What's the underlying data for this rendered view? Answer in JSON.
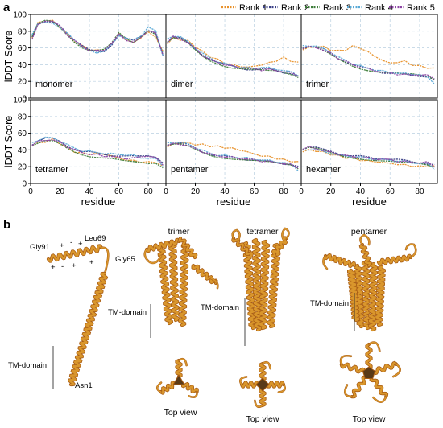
{
  "figure": {
    "panel_a": "a",
    "panel_b": "b"
  },
  "colors": {
    "rank1": "#e8912a",
    "rank2": "#3a3f86",
    "rank3": "#3d7d3a",
    "rank4": "#58a9d6",
    "rank5": "#8d45a4",
    "helix_fill": "#d9962c",
    "helix_edge": "#a85c14",
    "grid": "#b8cfe0"
  },
  "legend": [
    "Rank 1",
    "Rank 2",
    "Rank 3",
    "Rank 4",
    "Rank 5"
  ],
  "chart_data": {
    "type": "line",
    "ylabel": "lDDT Score",
    "xlabel": "residue",
    "xlim": [
      0,
      92
    ],
    "ylim": [
      0,
      100
    ],
    "x_ticks": [
      0,
      20,
      40,
      60,
      80
    ],
    "y_ticks": [
      0,
      20,
      40,
      60,
      80,
      100
    ],
    "grid": true,
    "legend_position": "top",
    "x": [
      1,
      5,
      10,
      15,
      20,
      25,
      30,
      35,
      40,
      45,
      50,
      55,
      60,
      65,
      70,
      75,
      80,
      85,
      90
    ],
    "panels": [
      {
        "name": "monomer",
        "series": [
          {
            "name": "Rank 1",
            "values": [
              72,
              90,
              93,
              92,
              85,
              76,
              68,
              62,
              58,
              57,
              58,
              65,
              77,
              70,
              66,
              73,
              78,
              74,
              55
            ]
          },
          {
            "name": "Rank 2",
            "values": [
              74,
              89,
              91,
              90,
              86,
              78,
              70,
              63,
              57,
              55,
              56,
              64,
              76,
              71,
              68,
              74,
              82,
              79,
              50
            ]
          },
          {
            "name": "Rank 3",
            "values": [
              73,
              88,
              92,
              91,
              84,
              75,
              67,
              61,
              58,
              58,
              59,
              66,
              78,
              70,
              65,
              72,
              80,
              76,
              54
            ]
          },
          {
            "name": "Rank 4",
            "values": [
              75,
              91,
              90,
              89,
              85,
              77,
              69,
              62,
              56,
              54,
              57,
              63,
              75,
              72,
              69,
              75,
              85,
              80,
              52
            ]
          },
          {
            "name": "Rank 5",
            "values": [
              71,
              87,
              93,
              92,
              86,
              76,
              68,
              62,
              57,
              56,
              58,
              65,
              76,
              70,
              66,
              73,
              81,
              77,
              53
            ]
          }
        ]
      },
      {
        "name": "dimer",
        "series": [
          {
            "name": "Rank 1",
            "values": [
              65,
              72,
              70,
              68,
              62,
              55,
              50,
              46,
              42,
              40,
              38,
              37,
              38,
              40,
              42,
              45,
              48,
              45,
              42
            ]
          },
          {
            "name": "Rank 2",
            "values": [
              68,
              74,
              72,
              66,
              58,
              52,
              47,
              43,
              40,
              38,
              36,
              35,
              34,
              34,
              35,
              33,
              31,
              30,
              26
            ]
          },
          {
            "name": "Rank 3",
            "values": [
              66,
              71,
              70,
              65,
              57,
              50,
              45,
              42,
              39,
              37,
              36,
              35,
              34,
              33,
              32,
              32,
              30,
              28,
              25
            ]
          },
          {
            "name": "Rank 4",
            "values": [
              70,
              75,
              73,
              67,
              60,
              53,
              48,
              44,
              41,
              39,
              37,
              36,
              36,
              37,
              36,
              35,
              33,
              31,
              28
            ]
          },
          {
            "name": "Rank 5",
            "values": [
              67,
              73,
              71,
              66,
              59,
              51,
              46,
              43,
              40,
              38,
              37,
              36,
              35,
              34,
              34,
              33,
              32,
              30,
              27
            ]
          }
        ]
      },
      {
        "name": "trimer",
        "series": [
          {
            "name": "Rank 1",
            "values": [
              58,
              60,
              62,
              61,
              58,
              56,
              58,
              62,
              60,
              55,
              50,
              45,
              42,
              43,
              44,
              40,
              38,
              37,
              35
            ]
          },
          {
            "name": "Rank 2",
            "values": [
              60,
              62,
              61,
              58,
              54,
              48,
              44,
              40,
              37,
              35,
              33,
              31,
              30,
              29,
              28,
              27,
              27,
              26,
              22
            ]
          },
          {
            "name": "Rank 3",
            "values": [
              59,
              61,
              60,
              56,
              52,
              47,
              43,
              39,
              36,
              34,
              32,
              31,
              30,
              29,
              28,
              28,
              27,
              26,
              23
            ]
          },
          {
            "name": "Rank 4",
            "values": [
              62,
              63,
              62,
              59,
              55,
              49,
              45,
              41,
              38,
              36,
              34,
              32,
              31,
              30,
              29,
              29,
              28,
              25,
              18
            ]
          },
          {
            "name": "Rank 5",
            "values": [
              60,
              61,
              61,
              57,
              53,
              48,
              44,
              40,
              37,
              35,
              33,
              31,
              30,
              29,
              28,
              28,
              28,
              27,
              24
            ]
          }
        ]
      },
      {
        "name": "tetramer",
        "series": [
          {
            "name": "Rank 1",
            "values": [
              45,
              48,
              50,
              52,
              48,
              42,
              38,
              36,
              35,
              36,
              35,
              33,
              30,
              28,
              27,
              26,
              25,
              26,
              20
            ]
          },
          {
            "name": "Rank 2",
            "values": [
              47,
              51,
              54,
              53,
              50,
              45,
              41,
              38,
              37,
              36,
              35,
              34,
              33,
              32,
              32,
              33,
              34,
              32,
              24
            ]
          },
          {
            "name": "Rank 3",
            "values": [
              44,
              47,
              50,
              50,
              47,
              42,
              38,
              35,
              33,
              32,
              31,
              30,
              28,
              26,
              25,
              24,
              23,
              24,
              19
            ]
          },
          {
            "name": "Rank 4",
            "values": [
              48,
              52,
              55,
              54,
              51,
              46,
              42,
              39,
              38,
              37,
              36,
              35,
              35,
              34,
              33,
              31,
              30,
              29,
              22
            ]
          },
          {
            "name": "Rank 5",
            "values": [
              46,
              50,
              52,
              52,
              49,
              44,
              40,
              37,
              35,
              34,
              33,
              32,
              31,
              30,
              30,
              32,
              33,
              30,
              23
            ]
          }
        ]
      },
      {
        "name": "pentamer",
        "series": [
          {
            "name": "Rank 1",
            "values": [
              44,
              47,
              49,
              48,
              47,
              46,
              45,
              44,
              43,
              42,
              40,
              38,
              35,
              33,
              32,
              30,
              28,
              27,
              25
            ]
          },
          {
            "name": "Rank 2",
            "values": [
              47,
              48,
              48,
              46,
              42,
              38,
              35,
              33,
              32,
              31,
              30,
              29,
              28,
              27,
              26,
              25,
              24,
              23,
              20
            ]
          },
          {
            "name": "Rank 3",
            "values": [
              45,
              46,
              46,
              44,
              40,
              37,
              34,
              32,
              31,
              30,
              29,
              28,
              27,
              26,
              25,
              24,
              23,
              22,
              18
            ]
          },
          {
            "name": "Rank 4",
            "values": [
              48,
              49,
              49,
              47,
              43,
              39,
              36,
              34,
              33,
              32,
              31,
              30,
              29,
              28,
              27,
              26,
              25,
              23,
              16
            ]
          },
          {
            "name": "Rank 5",
            "values": [
              46,
              47,
              47,
              45,
              41,
              38,
              35,
              33,
              32,
              31,
              30,
              29,
              28,
              27,
              26,
              25,
              24,
              22,
              19
            ]
          }
        ]
      },
      {
        "name": "hexamer",
        "series": [
          {
            "name": "Rank 1",
            "values": [
              38,
              40,
              39,
              37,
              35,
              33,
              31,
              30,
              28,
              27,
              26,
              25,
              24,
              23,
              22,
              21,
              20,
              21,
              20
            ]
          },
          {
            "name": "Rank 2",
            "values": [
              42,
              44,
              43,
              40,
              38,
              36,
              34,
              33,
              32,
              31,
              30,
              30,
              29,
              28,
              27,
              26,
              25,
              24,
              22
            ]
          },
          {
            "name": "Rank 3",
            "values": [
              40,
              42,
              41,
              39,
              36,
              34,
              32,
              31,
              30,
              29,
              28,
              27,
              26,
              25,
              24,
              24,
              23,
              22,
              20
            ]
          },
          {
            "name": "Rank 4",
            "values": [
              39,
              41,
              40,
              38,
              36,
              34,
              33,
              32,
              31,
              30,
              29,
              28,
              28,
              27,
              26,
              25,
              24,
              24,
              18
            ]
          },
          {
            "name": "Rank 5",
            "values": [
              41,
              43,
              42,
              39,
              37,
              35,
              33,
              32,
              31,
              30,
              29,
              29,
              28,
              27,
              26,
              25,
              25,
              25,
              21
            ]
          }
        ]
      }
    ]
  },
  "structures": {
    "monomer_labels": {
      "gly91": "Gly91",
      "leu69": "Leu69",
      "gly65": "Gly65",
      "asn1": "Asn1",
      "tm": "TM-domain",
      "plus": "+",
      "minus": "-"
    },
    "oligomers": [
      {
        "title": "trimer",
        "tm": "TM-domain",
        "top": "Top view"
      },
      {
        "title": "tetramer",
        "tm": "TM-domain",
        "top": "Top view"
      },
      {
        "title": "pentamer",
        "tm": "TM-domain",
        "top": "Top view"
      }
    ]
  }
}
